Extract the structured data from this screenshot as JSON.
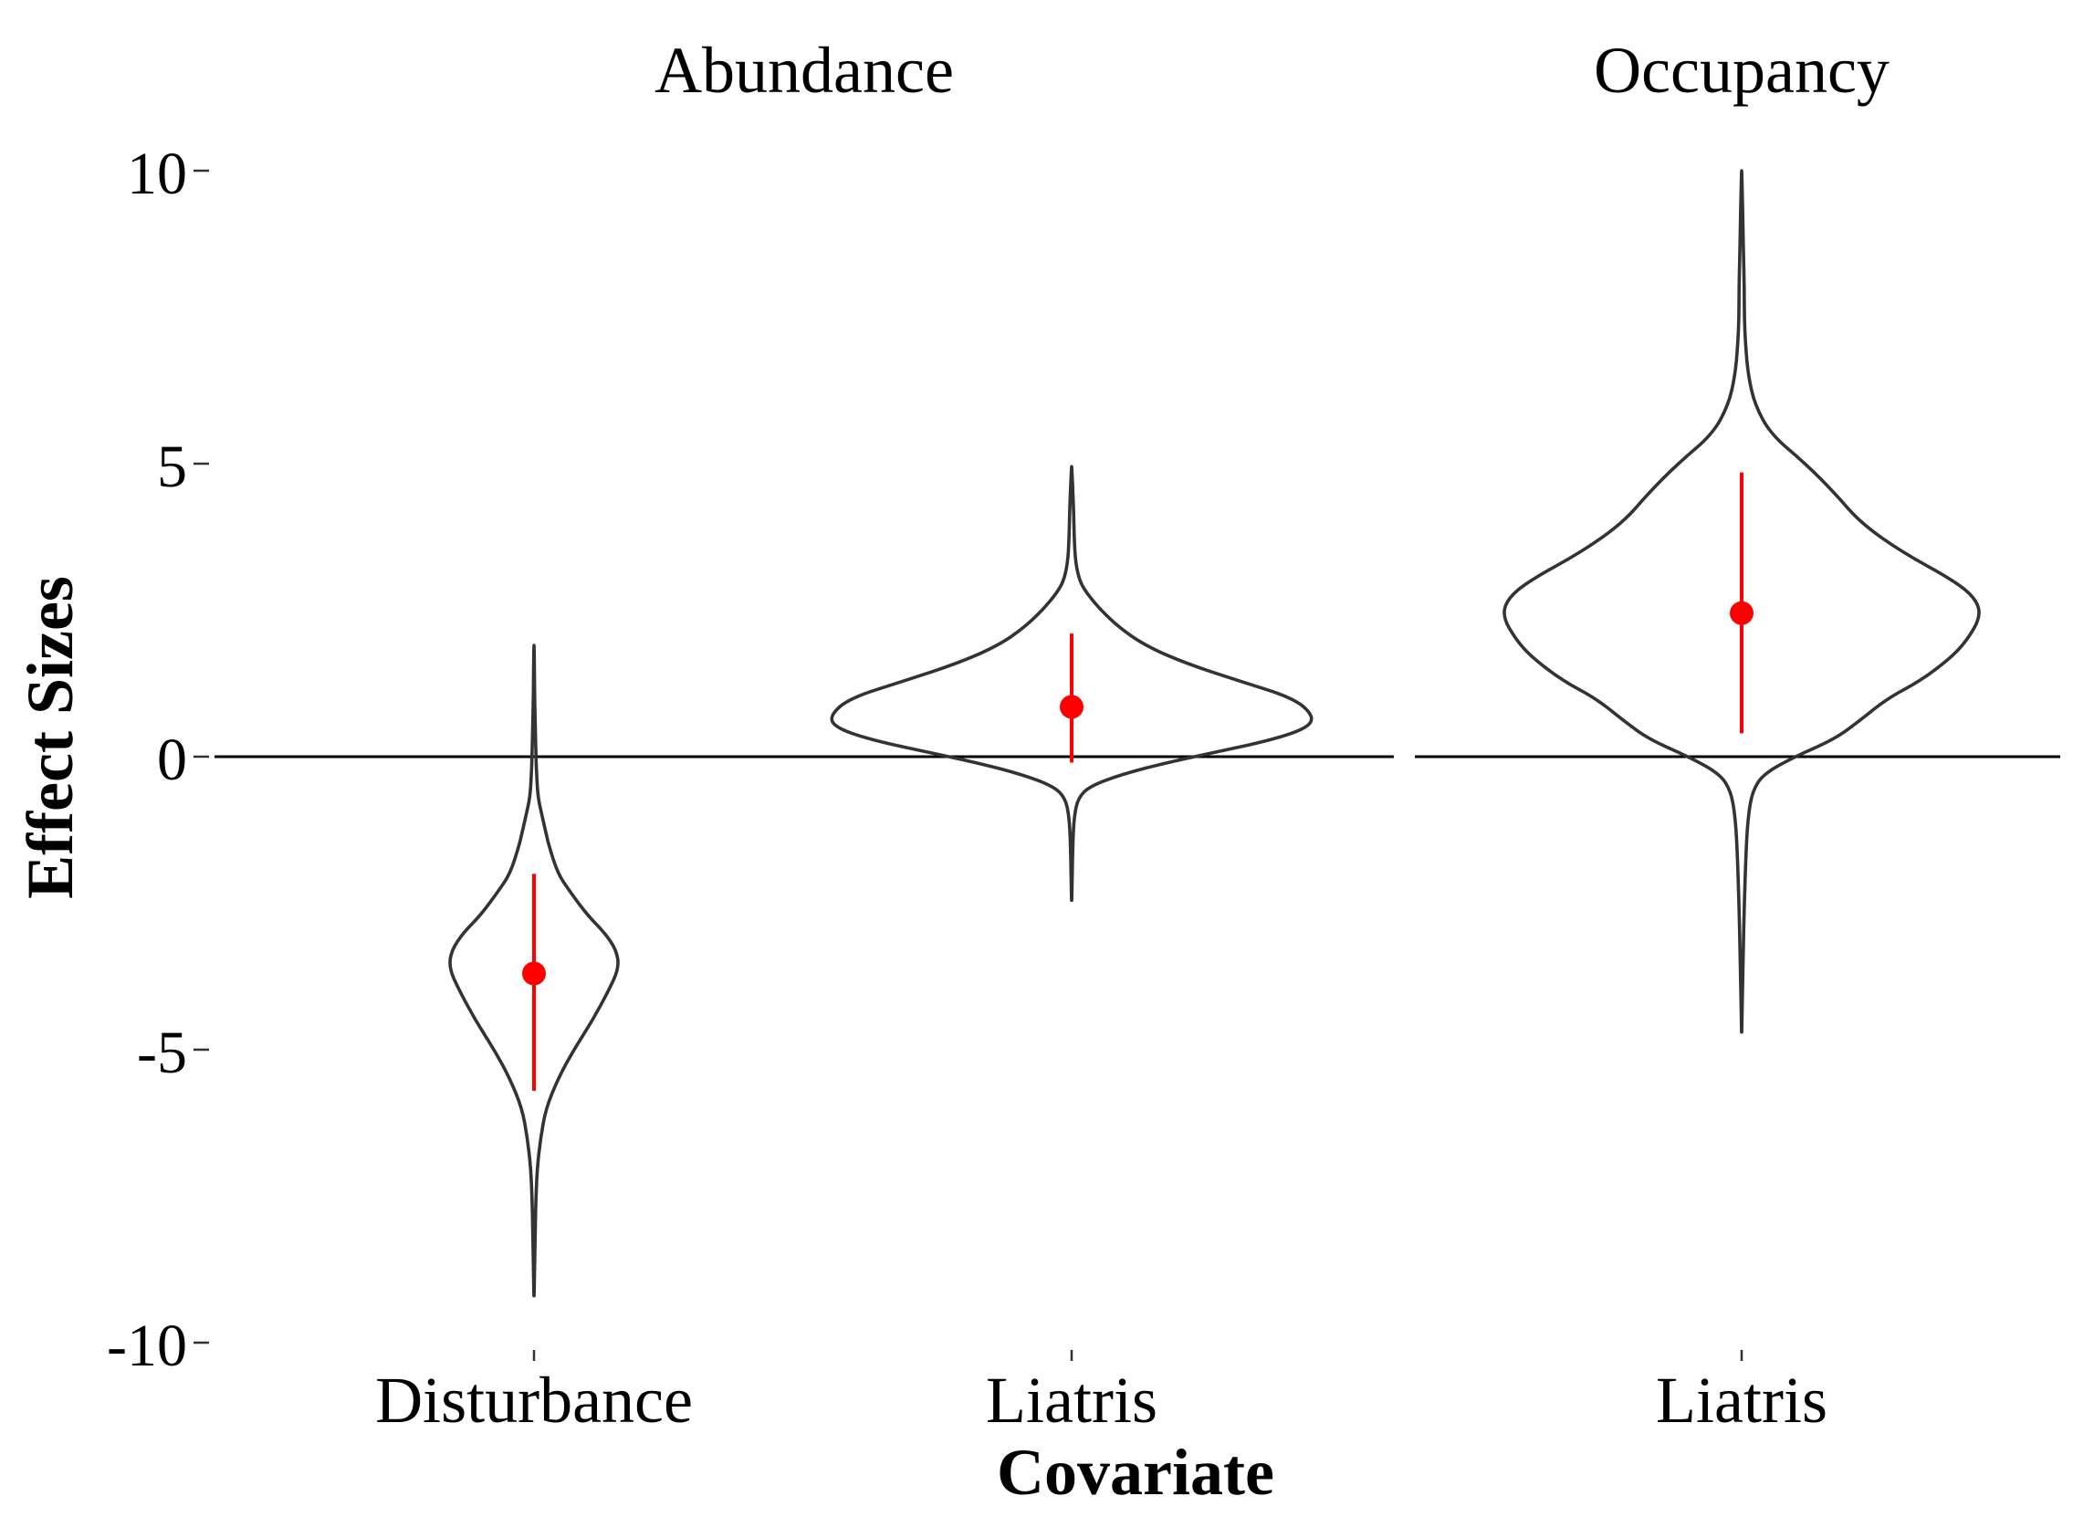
{
  "chart_data": {
    "type": "violin",
    "xlabel": "Covariate",
    "ylabel": "Effect Sizes",
    "ylim": [
      -10,
      10
    ],
    "yticks": [
      10,
      5,
      0,
      -5,
      -10
    ],
    "ytick_labels": [
      "10",
      "5",
      "0",
      "-5",
      "-10"
    ],
    "reference_line": 0,
    "colors": {
      "violin": "#333333",
      "point": "#ff0000",
      "interval": "#ff0000",
      "reference": "#000000"
    },
    "panels": [
      {
        "title": "Abundance",
        "groups": [
          {
            "category": "Disturbance",
            "mean": -3.7,
            "interval": [
              -5.7,
              -2.0
            ],
            "range": [
              -9.2,
              1.9
            ],
            "density": [
              [
                -9.2,
                0.1
              ],
              [
                -8.5,
                0.6
              ],
              [
                -8.0,
                1.0
              ],
              [
                -7.5,
                1.5
              ],
              [
                -7.0,
                2.5
              ],
              [
                -6.5,
                5
              ],
              [
                -6.0,
                9
              ],
              [
                -5.5,
                18
              ],
              [
                -5.0,
                30
              ],
              [
                -4.5,
                44
              ],
              [
                -4.0,
                56
              ],
              [
                -3.6,
                64
              ],
              [
                -3.3,
                62
              ],
              [
                -3.0,
                53
              ],
              [
                -2.7,
                40
              ],
              [
                -2.3,
                27
              ],
              [
                -2.0,
                18
              ],
              [
                -1.5,
                11
              ],
              [
                -1.3,
                9
              ],
              [
                -1.0,
                6
              ],
              [
                -0.7,
                3
              ],
              [
                -0.3,
                2
              ],
              [
                0.0,
                1.5
              ],
              [
                0.5,
                1.0
              ],
              [
                1.0,
                0.5
              ],
              [
                1.5,
                0.3
              ],
              [
                1.9,
                0.1
              ]
            ]
          },
          {
            "category": "Liatris",
            "mean": 0.85,
            "interval": [
              -0.1,
              2.1
            ],
            "range": [
              -2.45,
              4.95
            ],
            "density": [
              [
                -2.45,
                0.1
              ],
              [
                -1.5,
                0.8
              ],
              [
                -1.0,
                2
              ],
              [
                -0.7,
                5
              ],
              [
                -0.5,
                14
              ],
              [
                -0.3,
                38
              ],
              [
                -0.1,
                72
              ],
              [
                0.1,
                113
              ],
              [
                0.3,
                153
              ],
              [
                0.5,
                178
              ],
              [
                0.7,
                182
              ],
              [
                1.0,
                167
              ],
              [
                1.3,
                125
              ],
              [
                1.6,
                85
              ],
              [
                1.9,
                55
              ],
              [
                2.2,
                36
              ],
              [
                2.5,
                22
              ],
              [
                2.8,
                11
              ],
              [
                3.0,
                6
              ],
              [
                3.3,
                3
              ],
              [
                3.7,
                2
              ],
              [
                4.2,
                1.5
              ],
              [
                4.95,
                0.1
              ]
            ]
          }
        ]
      },
      {
        "title": "Occupancy",
        "groups": [
          {
            "category": "Liatris",
            "mean": 2.45,
            "interval": [
              0.4,
              4.85
            ],
            "range": [
              -4.7,
              10.0
            ],
            "density": [
              [
                -4.7,
                0.1
              ],
              [
                -3.5,
                1.0
              ],
              [
                -2.5,
                2
              ],
              [
                -1.5,
                3.5
              ],
              [
                -1.0,
                5
              ],
              [
                -0.6,
                8
              ],
              [
                -0.3,
                16
              ],
              [
                0.0,
                40
              ],
              [
                0.3,
                70
              ],
              [
                0.6,
                88
              ],
              [
                1.0,
                110
              ],
              [
                1.3,
                135
              ],
              [
                1.7,
                158
              ],
              [
                2.0,
                170
              ],
              [
                2.4,
                180
              ],
              [
                2.7,
                176
              ],
              [
                3.0,
                160
              ],
              [
                3.5,
                120
              ],
              [
                4.0,
                89
              ],
              [
                4.5,
                70
              ],
              [
                5.0,
                48
              ],
              [
                5.5,
                22
              ],
              [
                6.0,
                10
              ],
              [
                6.5,
                5
              ],
              [
                7.0,
                3
              ],
              [
                7.5,
                2
              ],
              [
                8.0,
                2
              ],
              [
                8.5,
                1.5
              ],
              [
                9.0,
                1.0
              ],
              [
                9.5,
                0.6
              ],
              [
                10.0,
                0.1
              ]
            ]
          }
        ]
      }
    ]
  }
}
